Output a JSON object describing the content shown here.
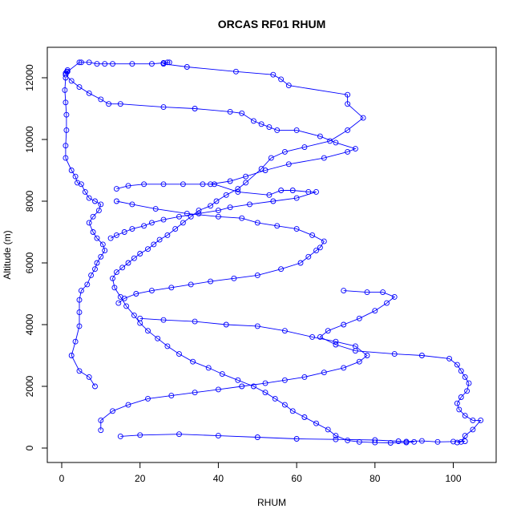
{
  "chart_data": {
    "type": "line",
    "title": "ORCAS RF01 RHUM",
    "xlabel": "RHUM",
    "ylabel": "Altitude (m)",
    "xlim": [
      0,
      110
    ],
    "ylim": [
      0,
      12700
    ],
    "x_ticks": [
      0,
      20,
      40,
      60,
      80,
      100
    ],
    "y_ticks": [
      0,
      2000,
      4000,
      6000,
      8000,
      10000,
      12000
    ],
    "x_tick_labels": [
      "0",
      "20",
      "40",
      "60",
      "80",
      "100"
    ],
    "y_tick_labels": [
      "0",
      "2000",
      "4000",
      "6000",
      "8000",
      "10000",
      "12000"
    ],
    "grid": false,
    "marker": "open-circle",
    "colors": {
      "series": "#0000ff",
      "axes": "#000000",
      "background": "#ffffff"
    },
    "series": [
      {
        "values": [
          [
            1.0,
            12150
          ],
          [
            1.3,
            12200
          ],
          [
            1.5,
            12250
          ],
          [
            1.0,
            12100
          ],
          [
            1.5,
            12200
          ],
          [
            4.5,
            12500
          ],
          [
            5.0,
            12500
          ],
          [
            7.0,
            12500
          ],
          [
            9.0,
            12450
          ],
          [
            11.0,
            12450
          ],
          [
            13.0,
            12450
          ],
          [
            18.0,
            12450
          ],
          [
            23.0,
            12450
          ],
          [
            26.0,
            12480
          ],
          [
            27.5,
            12500
          ],
          [
            27.0,
            12500
          ],
          [
            26.0,
            12450
          ],
          [
            32.0,
            12350
          ],
          [
            44.5,
            12200
          ],
          [
            54.0,
            12100
          ],
          [
            56.0,
            11950
          ],
          [
            58.0,
            11750
          ],
          [
            73.0,
            11450
          ],
          [
            73.0,
            11150
          ],
          [
            77.0,
            10700
          ],
          [
            73.0,
            10300
          ],
          [
            68.5,
            9950
          ],
          [
            62.0,
            9750
          ],
          [
            57.0,
            9600
          ],
          [
            53.5,
            9400
          ],
          [
            51.0,
            9050
          ],
          [
            47.0,
            8600
          ],
          [
            45.0,
            8400
          ],
          [
            42.0,
            8200
          ],
          [
            39.5,
            8000
          ],
          [
            38.0,
            7850
          ],
          [
            35.0,
            7700
          ],
          [
            33.0,
            7500
          ],
          [
            31.0,
            7300
          ],
          [
            29.0,
            7100
          ],
          [
            27.0,
            6900
          ],
          [
            25.0,
            6750
          ],
          [
            23.5,
            6600
          ],
          [
            22.0,
            6450
          ],
          [
            20.0,
            6300
          ],
          [
            18.5,
            6150
          ],
          [
            17.0,
            6000
          ],
          [
            15.5,
            5850
          ],
          [
            14.0,
            5700
          ],
          [
            13.0,
            5500
          ],
          [
            13.5,
            5200
          ],
          [
            15.0,
            4900
          ],
          [
            16.5,
            4600
          ],
          [
            18.5,
            4300
          ],
          [
            20.0,
            4050
          ],
          [
            22.0,
            3800
          ],
          [
            24.5,
            3550
          ],
          [
            27.0,
            3300
          ],
          [
            30.0,
            3050
          ],
          [
            33.5,
            2800
          ],
          [
            37.5,
            2600
          ],
          [
            41.0,
            2400
          ],
          [
            45.0,
            2200
          ],
          [
            49.0,
            2000
          ],
          [
            52.0,
            1800
          ],
          [
            54.5,
            1600
          ],
          [
            57.0,
            1400
          ],
          [
            59.0,
            1200
          ],
          [
            62.0,
            1000
          ],
          [
            65.0,
            800
          ],
          [
            68.0,
            600
          ],
          [
            70.0,
            400
          ],
          [
            73.0,
            250
          ],
          [
            76.0,
            200
          ],
          [
            80.0,
            180
          ],
          [
            84.0,
            170
          ],
          [
            88.0,
            180
          ],
          [
            90.0,
            200
          ]
        ]
      },
      {
        "values": [
          [
            1.0,
            12100
          ],
          [
            2.5,
            11900
          ],
          [
            4.5,
            11700
          ],
          [
            7.0,
            11500
          ],
          [
            10.0,
            11300
          ],
          [
            12.0,
            11150
          ],
          [
            15.0,
            11150
          ],
          [
            26.0,
            11050
          ],
          [
            34.0,
            11000
          ],
          [
            43.0,
            10900
          ],
          [
            46.0,
            10850
          ],
          [
            49.0,
            10600
          ],
          [
            51.0,
            10500
          ],
          [
            53.0,
            10400
          ],
          [
            55.0,
            10300
          ],
          [
            60.0,
            10300
          ],
          [
            66.0,
            10100
          ],
          [
            70.0,
            9900
          ],
          [
            75.0,
            9700
          ],
          [
            73.0,
            9600
          ],
          [
            67.0,
            9400
          ],
          [
            58.0,
            9200
          ],
          [
            52.0,
            9000
          ],
          [
            47.0,
            8800
          ],
          [
            43.0,
            8650
          ],
          [
            38.0,
            8550
          ]
        ]
      },
      {
        "values": [
          [
            1.0,
            12000
          ],
          [
            0.8,
            11600
          ],
          [
            1.0,
            11200
          ],
          [
            1.2,
            10800
          ],
          [
            1.2,
            10300
          ],
          [
            1.0,
            9800
          ],
          [
            1.0,
            9400
          ],
          [
            2.5,
            9000
          ],
          [
            3.5,
            8800
          ],
          [
            4.0,
            8600
          ],
          [
            5.0,
            8550
          ],
          [
            6.0,
            8300
          ],
          [
            7.0,
            8100
          ],
          [
            8.5,
            8000
          ],
          [
            10.0,
            7900
          ],
          [
            9.5,
            7700
          ],
          [
            8.0,
            7500
          ],
          [
            7.0,
            7300
          ],
          [
            8.0,
            7000
          ],
          [
            9.0,
            6800
          ],
          [
            10.5,
            6600
          ],
          [
            11.0,
            6400
          ],
          [
            10.0,
            6200
          ],
          [
            9.0,
            6000
          ],
          [
            8.5,
            5800
          ],
          [
            7.5,
            5600
          ],
          [
            6.5,
            5300
          ],
          [
            5.0,
            5100
          ],
          [
            4.5,
            4800
          ],
          [
            4.5,
            4400
          ],
          [
            4.5,
            3950
          ],
          [
            3.5,
            3450
          ],
          [
            2.5,
            3000
          ],
          [
            4.5,
            2500
          ],
          [
            7.0,
            2300
          ],
          [
            8.5,
            2000
          ]
        ]
      },
      {
        "values": [
          [
            14.0,
            8400
          ],
          [
            17.0,
            8500
          ],
          [
            21.0,
            8550
          ],
          [
            26.0,
            8550
          ],
          [
            31.0,
            8550
          ],
          [
            36.0,
            8550
          ],
          [
            39.0,
            8550
          ],
          [
            45.0,
            8300
          ],
          [
            53.0,
            8200
          ],
          [
            56.0,
            8350
          ],
          [
            59.0,
            8350
          ],
          [
            63.0,
            8300
          ],
          [
            65.0,
            8300
          ],
          [
            60.0,
            8100
          ],
          [
            54.0,
            8000
          ],
          [
            48.0,
            7900
          ],
          [
            43.0,
            7800
          ],
          [
            40.0,
            7700
          ],
          [
            35.0,
            7600
          ],
          [
            30.0,
            7500
          ],
          [
            26.0,
            7400
          ],
          [
            23.0,
            7300
          ],
          [
            21.0,
            7200
          ],
          [
            18.0,
            7100
          ],
          [
            16.0,
            7000
          ],
          [
            14.0,
            6900
          ],
          [
            12.5,
            6800
          ]
        ]
      },
      {
        "values": [
          [
            14.0,
            8000
          ],
          [
            18.0,
            7900
          ],
          [
            24.0,
            7750
          ],
          [
            32.0,
            7600
          ],
          [
            40.0,
            7500
          ],
          [
            46.0,
            7450
          ],
          [
            50.0,
            7300
          ],
          [
            55.0,
            7200
          ],
          [
            60.0,
            7100
          ],
          [
            64.0,
            6900
          ],
          [
            67.0,
            6700
          ],
          [
            66.0,
            6500
          ],
          [
            65.0,
            6400
          ],
          [
            63.0,
            6200
          ],
          [
            61.0,
            6000
          ],
          [
            56.0,
            5800
          ],
          [
            50.0,
            5600
          ],
          [
            44.0,
            5500
          ],
          [
            38.0,
            5400
          ],
          [
            33.0,
            5300
          ],
          [
            28.0,
            5200
          ],
          [
            23.0,
            5100
          ],
          [
            19.0,
            5000
          ],
          [
            16.0,
            4850
          ],
          [
            14.5,
            4700
          ]
        ]
      },
      {
        "values": [
          [
            20.0,
            4200
          ],
          [
            26.0,
            4150
          ],
          [
            34.0,
            4100
          ],
          [
            42.0,
            4000
          ],
          [
            50.0,
            3950
          ],
          [
            57.0,
            3800
          ],
          [
            64.0,
            3600
          ],
          [
            70.0,
            3450
          ],
          [
            75.0,
            3300
          ],
          [
            78.0,
            3000
          ],
          [
            76.0,
            2800
          ],
          [
            72.0,
            2600
          ],
          [
            67.0,
            2450
          ],
          [
            62.0,
            2300
          ],
          [
            57.0,
            2200
          ],
          [
            52.0,
            2100
          ],
          [
            46.0,
            2000
          ],
          [
            40.0,
            1900
          ],
          [
            34.0,
            1800
          ],
          [
            28.0,
            1700
          ],
          [
            22.0,
            1600
          ],
          [
            17.0,
            1400
          ],
          [
            13.0,
            1200
          ],
          [
            10.0,
            900
          ],
          [
            10.0,
            580
          ]
        ]
      },
      {
        "values": [
          [
            72.0,
            5100
          ],
          [
            78.0,
            5050
          ],
          [
            82.0,
            5050
          ],
          [
            85.0,
            4900
          ],
          [
            83.0,
            4700
          ],
          [
            80.0,
            4450
          ],
          [
            76.0,
            4200
          ],
          [
            72.0,
            4000
          ],
          [
            68.0,
            3800
          ],
          [
            66.0,
            3600
          ],
          [
            70.0,
            3350
          ],
          [
            75.0,
            3150
          ],
          [
            85.0,
            3050
          ],
          [
            92.0,
            3000
          ],
          [
            99.0,
            2900
          ],
          [
            101.0,
            2700
          ],
          [
            102.0,
            2500
          ],
          [
            103.0,
            2300
          ],
          [
            104.0,
            2100
          ],
          [
            103.5,
            1850
          ],
          [
            102.0,
            1650
          ],
          [
            101.0,
            1450
          ],
          [
            101.5,
            1250
          ],
          [
            103.0,
            1050
          ],
          [
            105.0,
            900
          ],
          [
            107.0,
            900
          ],
          [
            105.0,
            600
          ],
          [
            103.0,
            400
          ],
          [
            102.0,
            200
          ],
          [
            101.0,
            180
          ]
        ]
      },
      {
        "values": [
          [
            15.0,
            380
          ],
          [
            20.0,
            420
          ],
          [
            30.0,
            450
          ],
          [
            40.0,
            400
          ],
          [
            50.0,
            350
          ],
          [
            60.0,
            300
          ],
          [
            70.0,
            280
          ],
          [
            80.0,
            260
          ],
          [
            86.0,
            220
          ],
          [
            88.0,
            210
          ],
          [
            92.0,
            230
          ],
          [
            96.0,
            200
          ],
          [
            100.0,
            210
          ],
          [
            103.0,
            220
          ]
        ]
      }
    ]
  }
}
